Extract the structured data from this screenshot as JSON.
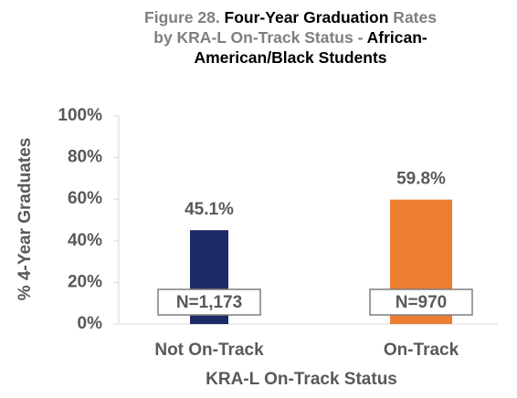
{
  "chart_data": {
    "type": "bar",
    "title_parts": [
      "Figure 28. ",
      "Four-Year Graduation",
      " Rates by KRA-L On-Track Status - ",
      "African-American/Black Students"
    ],
    "categories": [
      "Not On-Track",
      "On-Track"
    ],
    "values": [
      45.1,
      59.8
    ],
    "value_labels": [
      "45.1%",
      "59.8%"
    ],
    "annotations": [
      "N=1,173",
      "N=970"
    ],
    "colors": [
      "#1c2a66",
      "#ed7d31"
    ],
    "x_label": "KRA-L On-Track Status",
    "y_label": "% 4-Year Graduates",
    "ylim": [
      0,
      100
    ],
    "yticks": [
      {
        "value": 0,
        "label": "0%"
      },
      {
        "value": 20,
        "label": "20%"
      },
      {
        "value": 40,
        "label": "40%"
      },
      {
        "value": 60,
        "label": "60%"
      },
      {
        "value": 80,
        "label": "80%"
      },
      {
        "value": 100,
        "label": "100%"
      }
    ]
  }
}
